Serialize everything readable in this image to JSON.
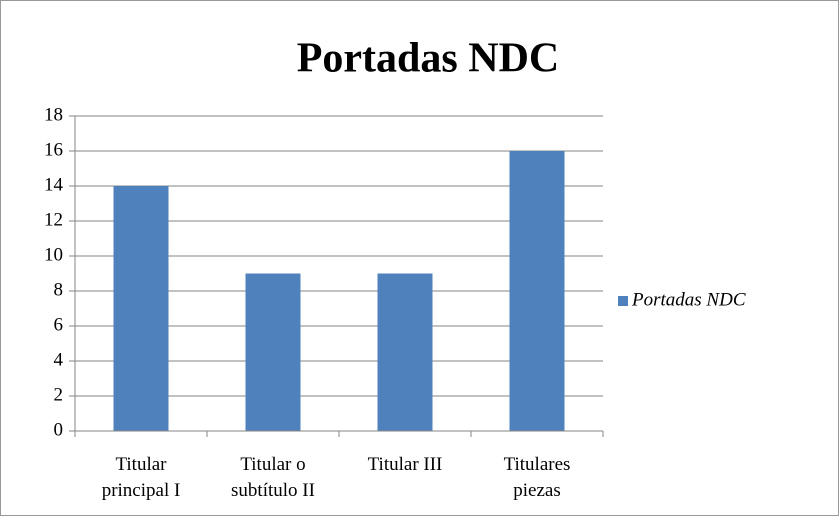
{
  "chart_data": {
    "type": "bar",
    "title": "Portadas NDC",
    "categories": [
      "Titular principal I",
      "Titular o subtítulo II",
      "Titular III",
      "Titulares piezas"
    ],
    "series": [
      {
        "name": "Portadas NDC",
        "color": "#4f81bd",
        "values": [
          14,
          9,
          9,
          16
        ]
      }
    ],
    "ylim": [
      0,
      18
    ],
    "yticks": [
      0,
      2,
      4,
      6,
      8,
      10,
      12,
      14,
      16,
      18
    ],
    "grid": true,
    "legend": "right"
  }
}
